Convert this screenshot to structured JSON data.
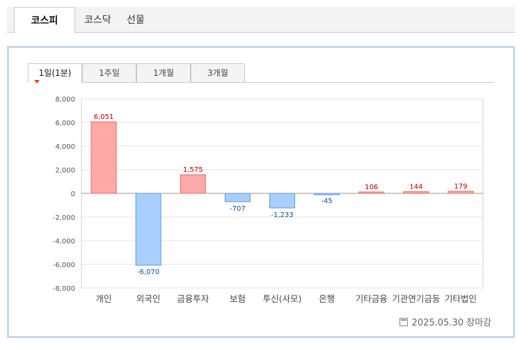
{
  "market_tabs": [
    {
      "label": "코스피",
      "active": true
    },
    {
      "label": "코스닥",
      "active": false
    },
    {
      "label": "선물",
      "active": false
    }
  ],
  "period_tabs": [
    {
      "label": "1일(1분)",
      "active": true
    },
    {
      "label": "1주일",
      "active": false
    },
    {
      "label": "1개월",
      "active": false
    },
    {
      "label": "3개월",
      "active": false
    }
  ],
  "footer": {
    "date": "2025.05.30 장마감"
  },
  "colors": {
    "positive_fill": "#ffa8a8",
    "positive_stroke": "#e46a6a",
    "negative_fill": "#a9cfff",
    "negative_stroke": "#5f97d6",
    "positive_label": "#b00000",
    "negative_label": "#0a4fa0"
  },
  "chart_data": {
    "type": "bar",
    "categories": [
      "개인",
      "외국인",
      "금융투자",
      "보험",
      "투신(사모)",
      "은행",
      "기타금융",
      "기관연기금등",
      "기타법인"
    ],
    "category_labels": [
      "개인",
      "외국인",
      "금융투자",
      "보험",
      "투신(사모)",
      "은행",
      "기타금융",
      "기관연기금등",
      "기타법인"
    ],
    "values": [
      6051,
      -6070,
      1575,
      -707,
      -1233,
      -45,
      106,
      144,
      179
    ],
    "value_labels": [
      "6,051",
      "-6,070",
      "1,575",
      "-707",
      "-1,233",
      "-45",
      "106",
      "144",
      "179"
    ],
    "yticks": [
      "8,000",
      "6,000",
      "4,000",
      "2,000",
      "0",
      "-2,000",
      "-4,000",
      "-6,000",
      "-8,000"
    ],
    "ytick_values": [
      8000,
      6000,
      4000,
      2000,
      0,
      -2000,
      -4000,
      -6000,
      -8000
    ],
    "ylim": [
      -8000,
      8000
    ],
    "grid": true
  }
}
